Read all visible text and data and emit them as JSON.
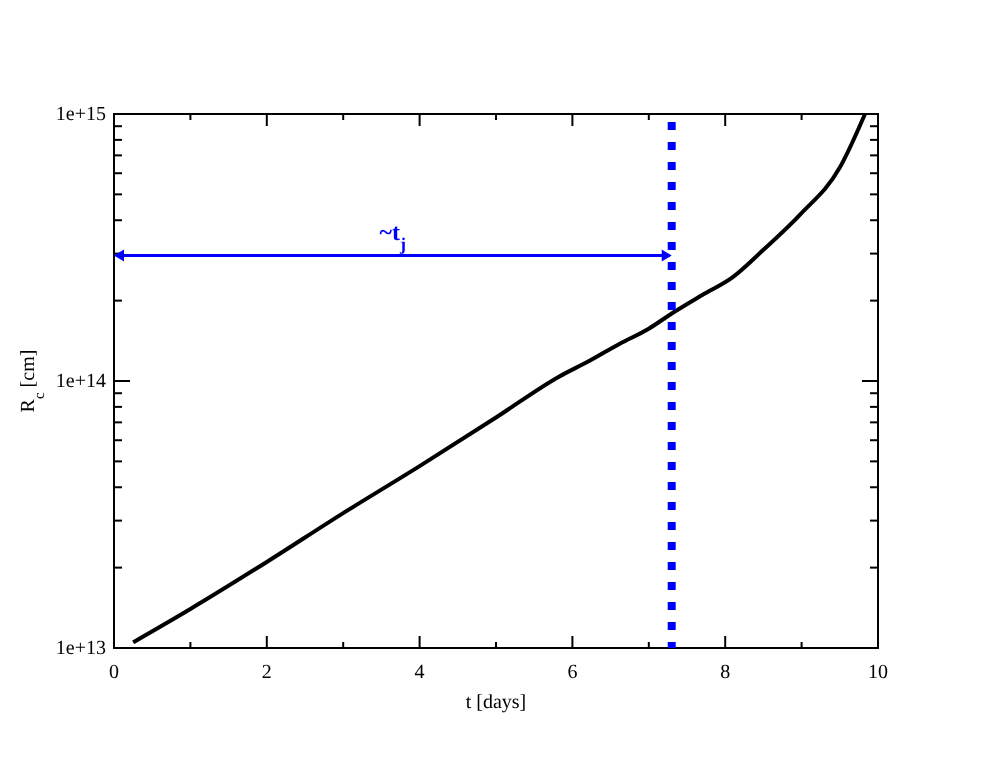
{
  "chart_data": {
    "type": "line",
    "xlabel": "t [days]",
    "ylabel": "R$_{c}$ [cm]",
    "log": "y",
    "xlim": [
      0,
      10
    ],
    "xticks": [
      0,
      2,
      4,
      6,
      8,
      10
    ],
    "ylim": [
      10000000000000.0,
      1000000000000000.0
    ],
    "yticks": [
      {
        "value": 10000000000000.0,
        "label": "1e+13"
      },
      {
        "value": 100000000000000.0,
        "label": "1e+14"
      },
      {
        "value": 1000000000000000.0,
        "label": "1e+15"
      }
    ],
    "grid": false,
    "marker": "none",
    "line_style": "solid",
    "series": [
      {
        "color": "#000000",
        "x": [
          0.25,
          1,
          2,
          3,
          4,
          5,
          5.83,
          6.2,
          6.62,
          7,
          7.3,
          7.7,
          8.1,
          8.5,
          8.98,
          9.5,
          9.83
        ],
        "values": [
          10500000000000.0,
          14000000000000.0,
          21000000000000.0,
          32000000000000.0,
          48000000000000.0,
          73000000000000.0,
          104000000000000.0,
          118000000000000.0,
          138000000000000.0,
          157000000000000.0,
          179000000000000.0,
          210000000000000.0,
          245000000000000.0,
          310000000000000.0,
          420000000000000.0,
          630000000000000.0,
          1000000000000000.0
        ]
      }
    ],
    "ref_lines": [
      {
        "axis": "x",
        "value": 7.3,
        "color": "#0000ff",
        "line_style": "dotted"
      }
    ],
    "annotations": [
      "~t$_{j}$"
    ]
  }
}
